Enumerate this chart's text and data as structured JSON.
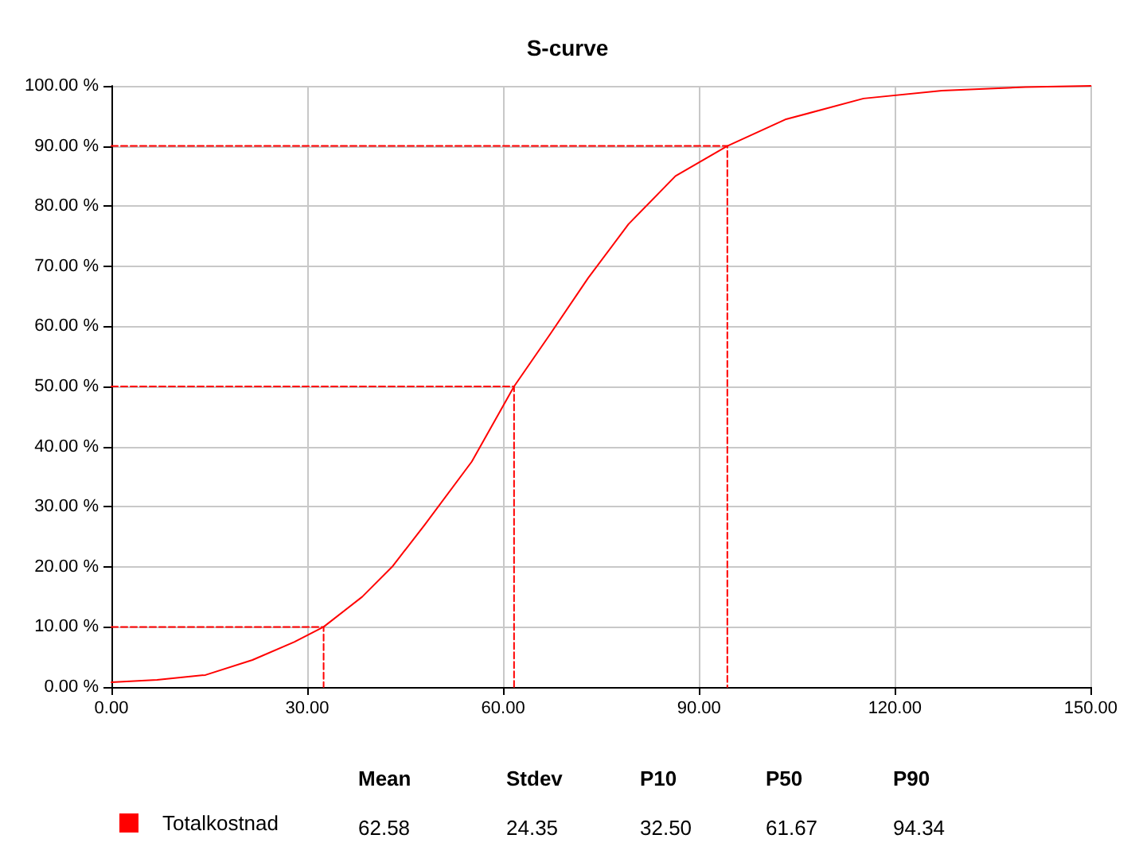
{
  "chart_data": {
    "type": "line",
    "title": "S-curve",
    "xlim": [
      0,
      150
    ],
    "ylim": [
      0,
      100
    ],
    "xticks": [
      {
        "value": 0,
        "label": "0.00"
      },
      {
        "value": 30,
        "label": "30.00"
      },
      {
        "value": 60,
        "label": "60.00"
      },
      {
        "value": 90,
        "label": "90.00"
      },
      {
        "value": 120,
        "label": "120.00"
      },
      {
        "value": 150,
        "label": "150.00"
      }
    ],
    "yticks": [
      {
        "value": 0,
        "label": "0.00 %"
      },
      {
        "value": 10,
        "label": "10.00 %"
      },
      {
        "value": 20,
        "label": "20.00 %"
      },
      {
        "value": 30,
        "label": "30.00 %"
      },
      {
        "value": 40,
        "label": "40.00 %"
      },
      {
        "value": 50,
        "label": "50.00 %"
      },
      {
        "value": 60,
        "label": "60.00 %"
      },
      {
        "value": 70,
        "label": "70.00 %"
      },
      {
        "value": 80,
        "label": "80.00 %"
      },
      {
        "value": 90,
        "label": "90.00 %"
      },
      {
        "value": 100,
        "label": "100.00 %"
      }
    ],
    "grid": true,
    "legend": "bottom left",
    "marker": "none",
    "series": [
      {
        "name": "Totalkostnad",
        "color": "#ff0000",
        "line_style": "solid",
        "x": [
          0,
          7,
          14.4,
          21.6,
          28,
          32.5,
          38.4,
          43,
          48,
          55.2,
          61.67,
          67.2,
          73,
          79.2,
          86.4,
          94.34,
          103.2,
          115.2,
          127.2,
          140,
          150
        ],
        "values": [
          0.8,
          1.2,
          2,
          4.5,
          7.5,
          10,
          15,
          20,
          27,
          37.5,
          50,
          58.7,
          68,
          77,
          85,
          90,
          94.4,
          97.9,
          99.2,
          99.8,
          100
        ]
      },
      {
        "color": "#ff0000",
        "line_style": "dashed",
        "x": [
          0,
          32.5,
          32.5
        ],
        "values": [
          10,
          10,
          0
        ]
      },
      {
        "color": "#ff0000",
        "line_style": "dashed",
        "x": [
          0,
          61.67,
          61.67
        ],
        "values": [
          50,
          50,
          0
        ]
      },
      {
        "color": "#ff0000",
        "line_style": "dashed",
        "x": [
          0,
          94.34,
          94.34
        ],
        "values": [
          90,
          90,
          0
        ]
      }
    ],
    "annotations": [
      "Mean",
      "Stdev",
      "P10",
      "P50",
      "P90",
      "62.58",
      "24.35",
      "32.50",
      "61.67",
      "94.34"
    ]
  }
}
